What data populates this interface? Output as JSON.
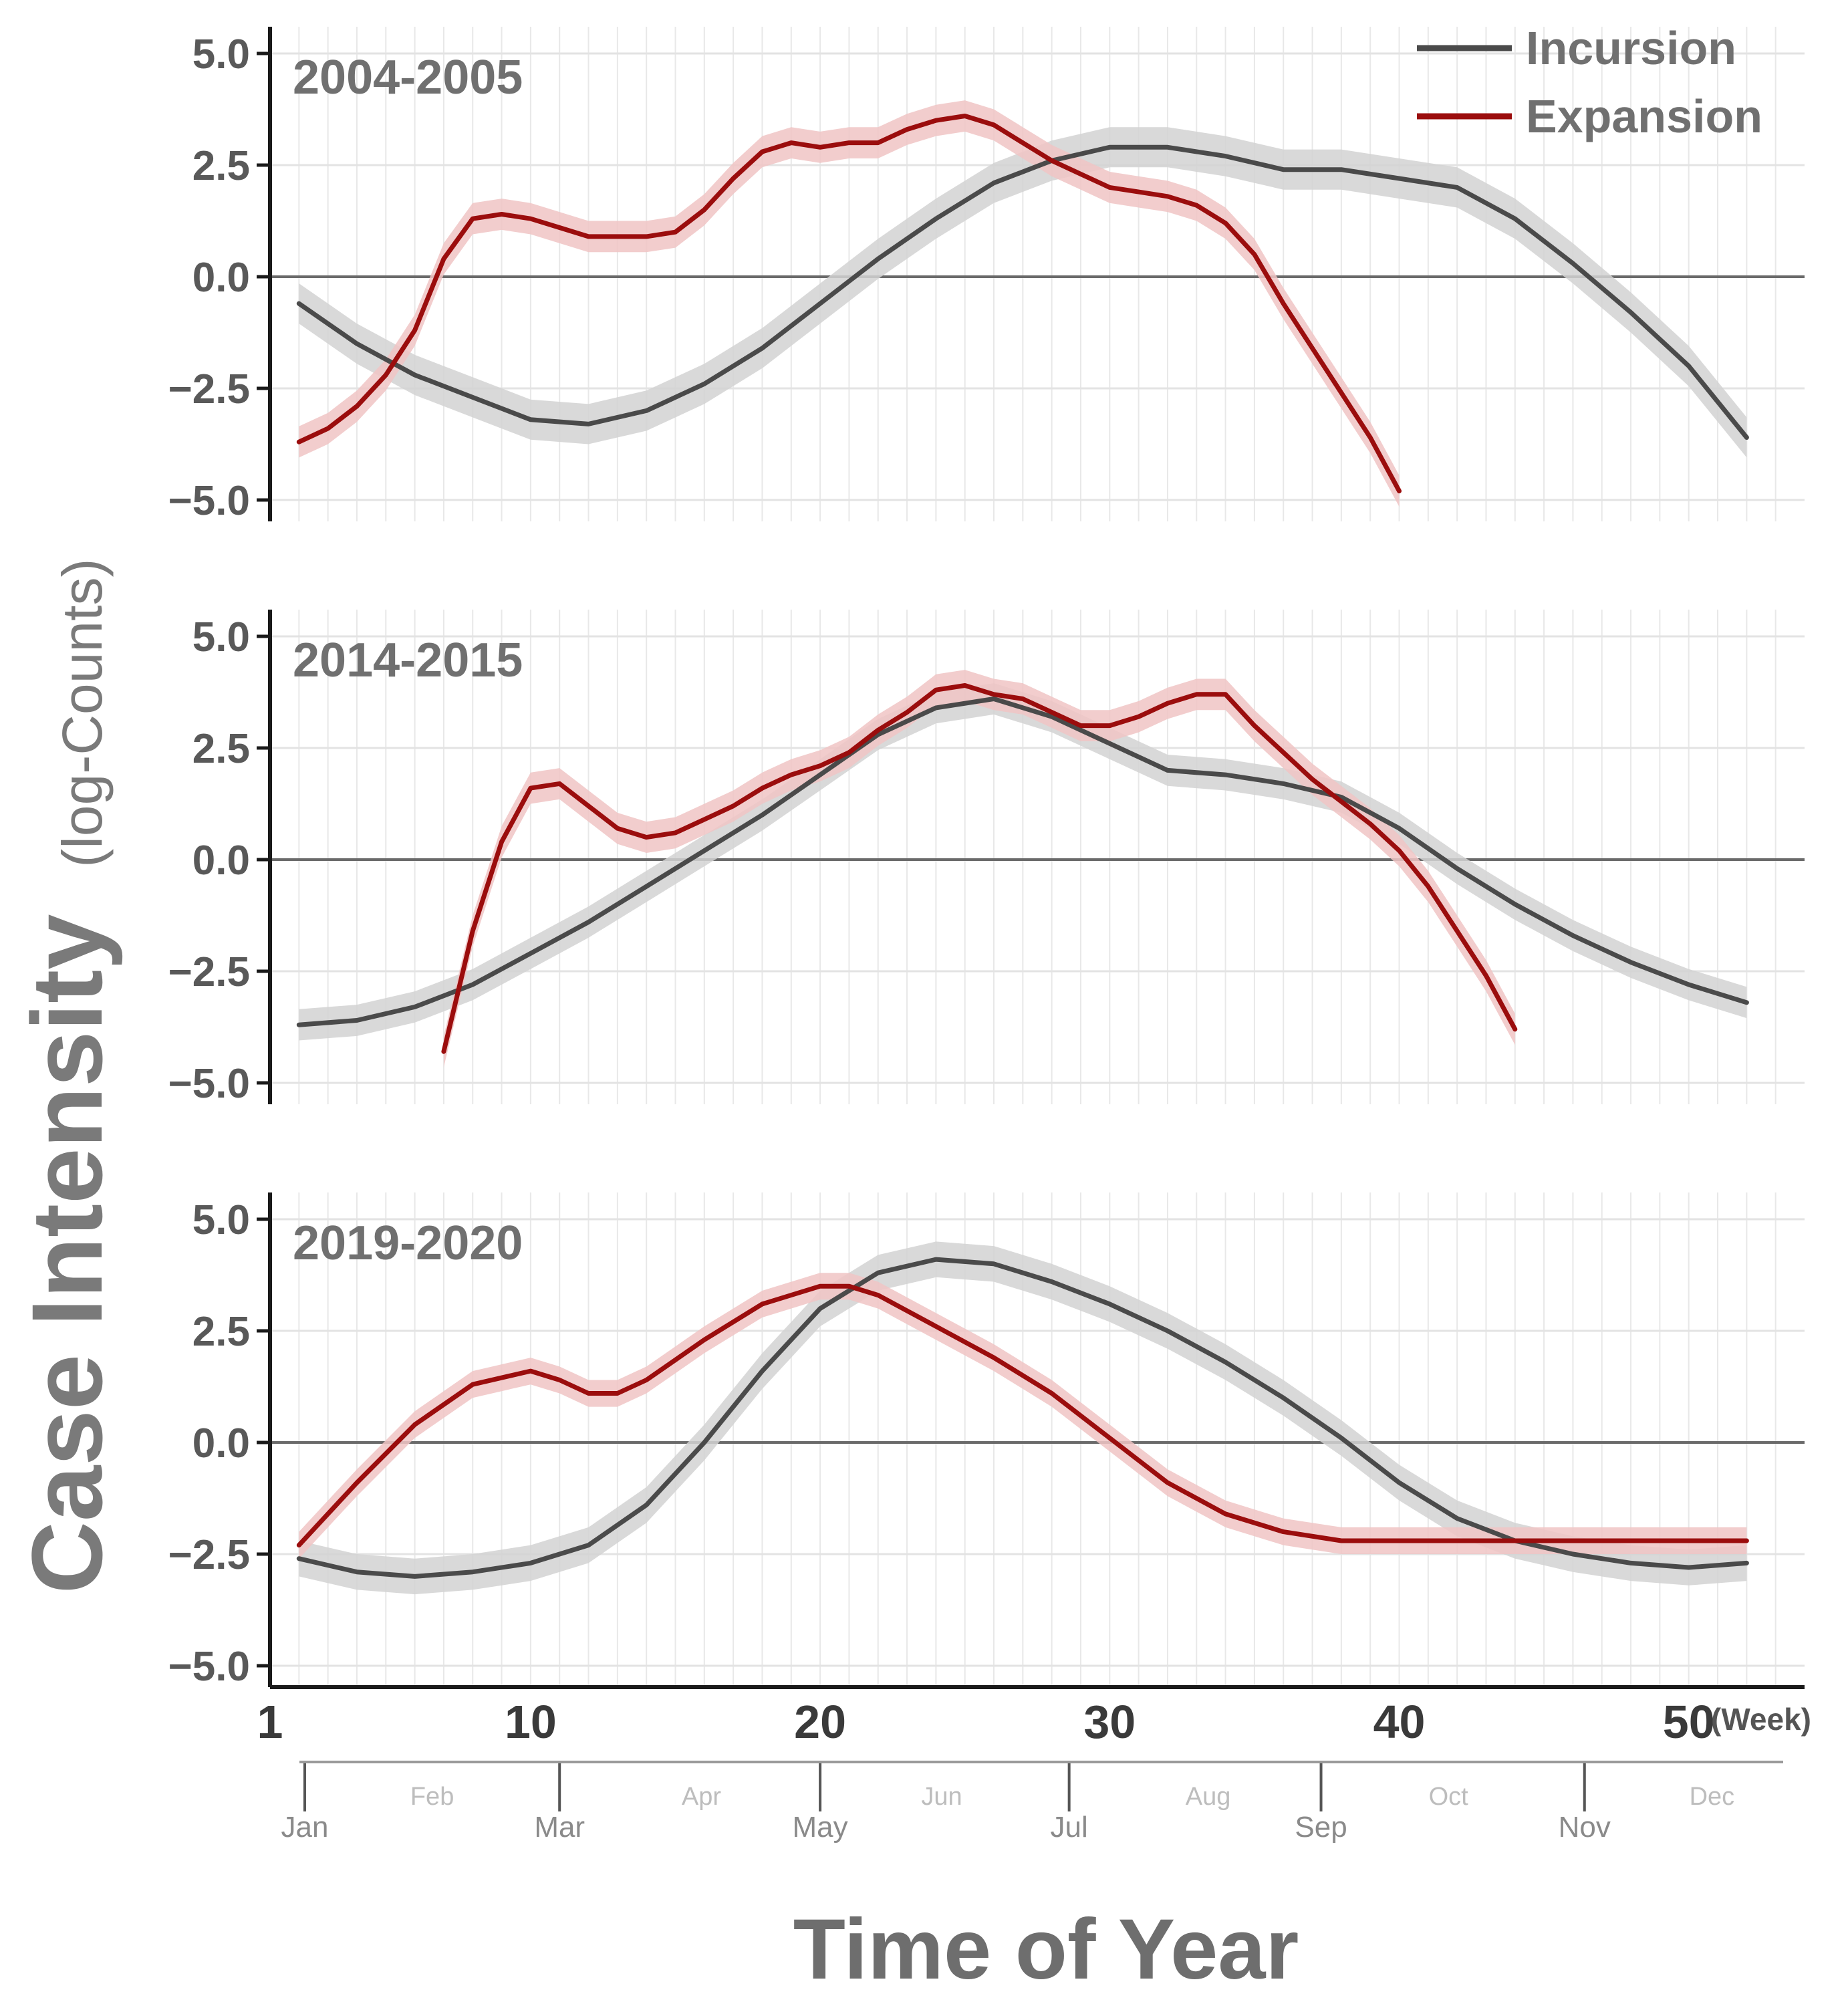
{
  "chart_data": {
    "type": "line",
    "ylabel_main": "Case Intensity",
    "ylabel_sub": "(log-Counts)",
    "xlabel": "Time of Year",
    "x_unit": "(Week)",
    "xlim": [
      1,
      54
    ],
    "ylim": [
      -5.0,
      5.0
    ],
    "yticks": [
      "5.0",
      "2.5",
      "0.0",
      "−2.5",
      "−5.0"
    ],
    "ytick_values": [
      5.0,
      2.5,
      0.0,
      -2.5,
      -5.0
    ],
    "xticks": [
      "1",
      "10",
      "20",
      "30",
      "40",
      "50"
    ],
    "xtick_values": [
      1,
      10,
      20,
      30,
      40,
      50
    ],
    "months_major": [
      {
        "label": "Jan",
        "week": 2.2
      },
      {
        "label": "Mar",
        "week": 11.0
      },
      {
        "label": "May",
        "week": 20.0
      },
      {
        "label": "Jul",
        "week": 28.6
      },
      {
        "label": "Sep",
        "week": 37.3
      },
      {
        "label": "Nov",
        "week": 46.4
      }
    ],
    "months_minor": [
      {
        "label": "Feb",
        "week": 6.6
      },
      {
        "label": "Apr",
        "week": 15.9
      },
      {
        "label": "Jun",
        "week": 24.2
      },
      {
        "label": "Aug",
        "week": 33.4
      },
      {
        "label": "Oct",
        "week": 41.7
      },
      {
        "label": "Dec",
        "week": 50.8
      }
    ],
    "grid": true,
    "legend_position": "top-right",
    "legend": [
      {
        "name": "Incursion",
        "color": "#4a4a4a"
      },
      {
        "name": "Expansion",
        "color": "#9b0d0d"
      }
    ],
    "colors": {
      "incursion": "#4a4a4a",
      "incursion_band": "#d2d2d2",
      "expansion": "#9b0d0d",
      "expansion_band": "#f0c4c4"
    },
    "panels": [
      {
        "title": "2004-2005",
        "series": [
          {
            "name": "Incursion",
            "band": 0.45,
            "x": [
              2,
              4,
              6,
              8,
              10,
              12,
              14,
              16,
              18,
              20,
              22,
              24,
              26,
              28,
              30,
              32,
              34,
              36,
              38,
              40,
              42,
              44,
              46,
              48,
              50,
              52
            ],
            "y": [
              -0.6,
              -1.5,
              -2.2,
              -2.7,
              -3.2,
              -3.3,
              -3.0,
              -2.4,
              -1.6,
              -0.6,
              0.4,
              1.3,
              2.1,
              2.6,
              2.9,
              2.9,
              2.7,
              2.4,
              2.4,
              2.2,
              2.0,
              1.3,
              0.3,
              -0.8,
              -2.0,
              -3.6
            ]
          },
          {
            "name": "Expansion",
            "band": 0.35,
            "x": [
              2,
              3,
              4,
              5,
              6,
              7,
              8,
              9,
              10,
              11,
              12,
              13,
              14,
              15,
              16,
              17,
              18,
              19,
              20,
              21,
              22,
              23,
              24,
              25,
              26,
              27,
              28,
              29,
              30,
              31,
              32,
              33,
              34,
              35,
              36,
              37,
              38,
              39,
              40,
              41,
              42,
              43,
              44,
              45,
              46,
              47
            ],
            "y": [
              -3.7,
              -3.4,
              -2.9,
              -2.2,
              -1.2,
              0.4,
              1.3,
              1.4,
              1.3,
              1.1,
              0.9,
              0.9,
              0.9,
              1.0,
              1.5,
              2.2,
              2.8,
              3.0,
              2.9,
              3.0,
              3.0,
              3.3,
              3.5,
              3.6,
              3.4,
              3.0,
              2.6,
              2.3,
              2.0,
              1.9,
              1.8,
              1.6,
              1.2,
              0.5,
              -0.6,
              -1.6,
              -2.6,
              -3.6,
              -4.8,
              null,
              null,
              null,
              null,
              null,
              null,
              null
            ]
          }
        ]
      },
      {
        "title": "2014-2015",
        "series": [
          {
            "name": "Incursion",
            "band": 0.35,
            "x": [
              2,
              4,
              6,
              8,
              10,
              12,
              14,
              16,
              18,
              20,
              22,
              24,
              26,
              28,
              30,
              32,
              34,
              36,
              38,
              40,
              42,
              44,
              46,
              48,
              50,
              52
            ],
            "y": [
              -3.7,
              -3.6,
              -3.3,
              -2.8,
              -2.1,
              -1.4,
              -0.6,
              0.2,
              1.0,
              1.9,
              2.8,
              3.4,
              3.6,
              3.2,
              2.6,
              2.0,
              1.9,
              1.7,
              1.4,
              0.7,
              -0.2,
              -1.0,
              -1.7,
              -2.3,
              -2.8,
              -3.2
            ]
          },
          {
            "name": "Expansion",
            "band": 0.35,
            "x": [
              7,
              8,
              9,
              10,
              11,
              12,
              13,
              14,
              15,
              16,
              17,
              18,
              19,
              20,
              21,
              22,
              23,
              24,
              25,
              26,
              27,
              28,
              29,
              30,
              31,
              32,
              33,
              34,
              35,
              36,
              37,
              38,
              39,
              40,
              41,
              42,
              43,
              44,
              45,
              46,
              47,
              48
            ],
            "y": [
              -4.3,
              -1.6,
              0.4,
              1.6,
              1.7,
              1.2,
              0.7,
              0.5,
              0.6,
              0.9,
              1.2,
              1.6,
              1.9,
              2.1,
              2.4,
              2.9,
              3.3,
              3.8,
              3.9,
              3.7,
              3.6,
              3.3,
              3.0,
              3.0,
              3.2,
              3.5,
              3.7,
              3.7,
              3.0,
              2.4,
              1.8,
              1.3,
              0.8,
              0.2,
              -0.6,
              -1.6,
              -2.6,
              -3.8,
              null,
              null,
              null,
              null
            ]
          }
        ]
      },
      {
        "title": "2019-2020",
        "series": [
          {
            "name": "Incursion",
            "band": 0.4,
            "x": [
              2,
              4,
              6,
              8,
              10,
              12,
              14,
              16,
              18,
              20,
              22,
              24,
              26,
              28,
              30,
              32,
              34,
              36,
              38,
              40,
              42,
              44,
              46,
              48,
              50,
              52
            ],
            "y": [
              -2.6,
              -2.9,
              -3.0,
              -2.9,
              -2.7,
              -2.3,
              -1.4,
              0.0,
              1.6,
              3.0,
              3.8,
              4.1,
              4.0,
              3.6,
              3.1,
              2.5,
              1.8,
              1.0,
              0.1,
              -0.9,
              -1.7,
              -2.2,
              -2.5,
              -2.7,
              -2.8,
              -2.7
            ]
          },
          {
            "name": "Expansion",
            "band": 0.3,
            "x": [
              2,
              4,
              6,
              8,
              10,
              11,
              12,
              13,
              14,
              16,
              18,
              20,
              21,
              22,
              24,
              26,
              28,
              30,
              32,
              34,
              36,
              38,
              40,
              42,
              44,
              46,
              48,
              50,
              52
            ],
            "y": [
              -2.3,
              -0.9,
              0.4,
              1.3,
              1.6,
              1.4,
              1.1,
              1.1,
              1.4,
              2.3,
              3.1,
              3.5,
              3.5,
              3.3,
              2.6,
              1.9,
              1.1,
              0.1,
              -0.9,
              -1.6,
              -2.0,
              -2.2,
              -2.2,
              -2.2,
              -2.2,
              -2.2,
              -2.2,
              -2.2,
              -2.2
            ]
          }
        ]
      }
    ]
  }
}
